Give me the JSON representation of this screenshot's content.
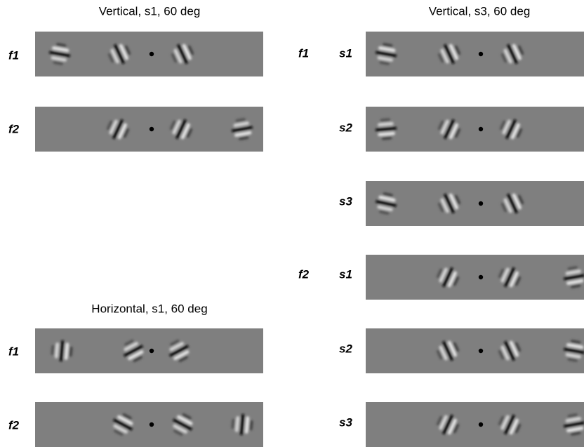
{
  "panels": [
    {
      "title": "Vertical, s1, 60 deg",
      "rows": [
        {
          "label": "f1"
        },
        {
          "label": "f2"
        }
      ]
    },
    {
      "title": "Horizontal, s1, 60 deg",
      "rows": [
        {
          "label": "f1"
        },
        {
          "label": "f2"
        }
      ]
    },
    {
      "title": "Vertical, s3, 60 deg",
      "groups": [
        {
          "label": "f1",
          "rows": [
            {
              "label": "s1"
            },
            {
              "label": "s2"
            },
            {
              "label": "s3"
            }
          ]
        },
        {
          "label": "f2",
          "rows": [
            {
              "label": "s1"
            },
            {
              "label": "s2"
            },
            {
              "label": "s3"
            }
          ]
        }
      ]
    }
  ]
}
